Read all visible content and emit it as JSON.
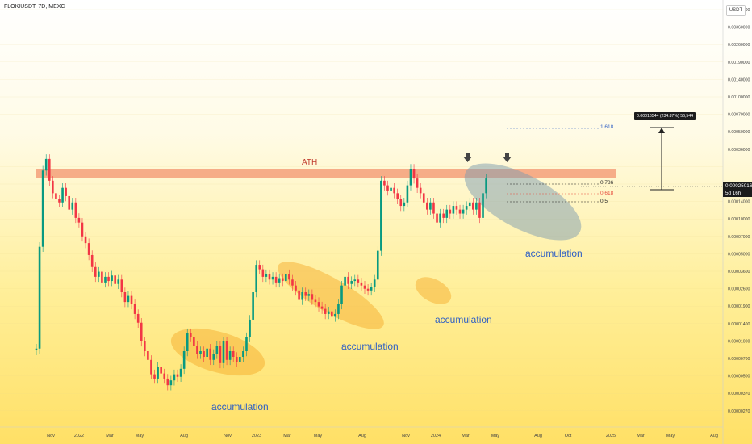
{
  "symbol": "FLOKIUSDT, 7D, MEXC",
  "currency_badge": "USDT",
  "current_price": "0.00025016",
  "countdown": "5d 16h",
  "measure_tooltip": "0.00016544 (234.87%) 56,544",
  "ath_label": "ATH",
  "fib_labels": [
    "1.618",
    "0.786",
    "0.618",
    "0.5"
  ],
  "zone_labels": [
    "accumulation",
    "accumulation",
    "accumulation",
    "accumulation"
  ],
  "colors": {
    "up": "#089981",
    "down": "#f23645",
    "ath_band": "#f5a07a",
    "zone": "#f5a623",
    "blue_text": "#2e5fc4"
  },
  "chart_data": {
    "type": "candlestick",
    "scale": "log",
    "y_ticks": [
      "0.00500000",
      "0.00360000",
      "0.00260000",
      "0.00190000",
      "0.00140000",
      "0.00100000",
      "0.00070000",
      "0.00050000",
      "0.00036000",
      "0.00025016",
      "0.00019000",
      "0.00014000",
      "0.00010000",
      "0.00007000",
      "0.00005000",
      "0.00003600",
      "0.00002600",
      "0.00001900",
      "0.00001400",
      "0.00001000",
      "0.00000700",
      "0.00000500",
      "0.00000370",
      "0.00000270"
    ],
    "x_ticks": [
      "Nov",
      "2022",
      "Mar",
      "May",
      "Aug",
      "Nov",
      "2023",
      "Mar",
      "May",
      "Aug",
      "Nov",
      "2024",
      "Mar",
      "May",
      "Aug",
      "Oct",
      "2025",
      "Mar",
      "May",
      "Aug"
    ],
    "closes": [
      1.05e-05,
      7e-05,
      0.00029,
      0.00036,
      0.00024,
      0.00019,
      0.00017,
      0.00016,
      0.00021,
      0.00018,
      0.00014,
      0.00016,
      0.00012,
      0.00011,
      8.5e-05,
      7.5e-05,
      6e-05,
      4.8e-05,
      4e-05,
      4.4e-05,
      3.6e-05,
      4e-05,
      3.7e-05,
      4.1e-05,
      3.5e-05,
      3.8e-05,
      3e-05,
      2.5e-05,
      2.8e-05,
      2.4e-05,
      2e-05,
      1.7e-05,
      1.2e-05,
      1e-05,
      8.5e-06,
      6.5e-06,
      6e-06,
      7.5e-06,
      6.6e-06,
      6e-06,
      5.3e-06,
      5.8e-06,
      6.5e-06,
      6.2e-06,
      7.2e-06,
      1e-05,
      1.4e-05,
      1.3e-05,
      1.1e-05,
      9.5e-06,
      1e-05,
      9e-06,
      1.05e-05,
      8.5e-06,
      9.5e-06,
      1.1e-05,
      8e-06,
      1.2e-05,
      8.5e-06,
      1e-05,
      9e-06,
      8.2e-06,
      9e-06,
      1e-05,
      1.3e-05,
      1.8e-05,
      3e-05,
      5e-05,
      4.6e-05,
      4e-05,
      4.2e-05,
      3.8e-05,
      4e-05,
      3.6e-05,
      3.9e-05,
      3.7e-05,
      4.2e-05,
      3.8e-05,
      3.4e-05,
      3.1e-05,
      2.6e-05,
      3e-05,
      2.8e-05,
      2.9e-05,
      2.6e-05,
      2.5e-05,
      2.3e-05,
      2.2e-05,
      2e-05,
      2.1e-05,
      1.9e-05,
      2e-05,
      2.4e-05,
      3.4e-05,
      4e-05,
      3.5e-05,
      3.7e-05,
      3.8e-05,
      3.6e-05,
      3.4e-05,
      3.2e-05,
      3.1e-05,
      3.3e-05,
      3.8e-05,
      6.5e-05,
      0.00024,
      0.00022,
      0.0002,
      0.00021,
      0.00019,
      0.00017,
      0.00015,
      0.00016,
      0.00022,
      0.0003,
      0.00025,
      0.00021,
      0.00019,
      0.00016,
      0.00014,
      0.00016,
      0.00013,
      0.00011,
      0.00013,
      0.00012,
      0.00014,
      0.00013,
      0.00015,
      0.00014,
      0.00013,
      0.00014,
      0.00015,
      0.00016,
      0.00014,
      0.00016,
      0.00012,
      0.00019,
      0.00025016
    ]
  }
}
